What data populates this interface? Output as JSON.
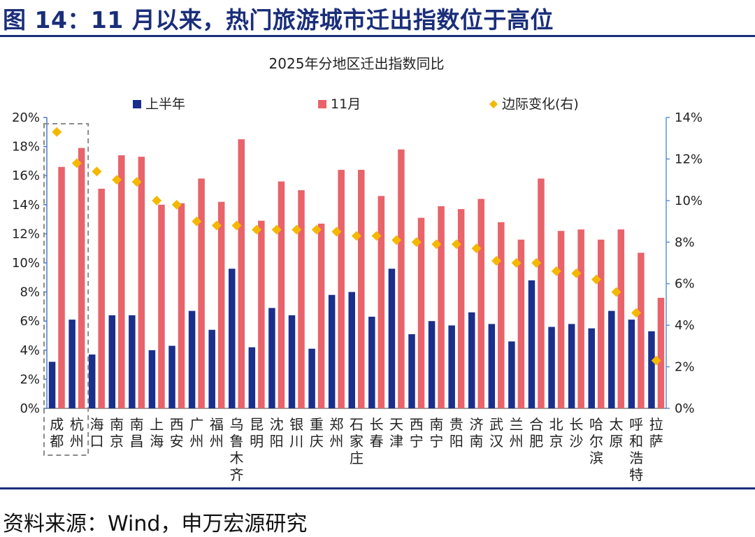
{
  "figure": {
    "title": "图 14：11 月以来，热门旅游城市迁出指数位于高位",
    "source": "资料来源：Wind，申万宏源研究"
  },
  "colors": {
    "series_h1": "#1a2e8c",
    "series_nov": "#e8636a",
    "series_change": "#f5b800",
    "title_blue": "#1a2e7a",
    "axis_right": "#5b8fd6"
  },
  "chart_data": {
    "type": "bar",
    "title": "2025年分地区迁出指数同比",
    "categories": [
      "成都",
      "杭州",
      "海口",
      "南京",
      "南昌",
      "上海",
      "西安",
      "广州",
      "福州",
      "乌鲁木齐",
      "昆明",
      "沈阳",
      "银川",
      "重庆",
      "郑州",
      "石家庄",
      "长春",
      "天津",
      "西宁",
      "南宁",
      "贵阳",
      "济南",
      "武汉",
      "兰州",
      "合肥",
      "北京",
      "长沙",
      "哈尔滨",
      "太原",
      "呼和浩特",
      "拉萨"
    ],
    "ylim": [
      0,
      20
    ],
    "y_ticks": [
      "0%",
      "2%",
      "4%",
      "6%",
      "8%",
      "10%",
      "12%",
      "14%",
      "16%",
      "18%",
      "20%"
    ],
    "y2lim": [
      0,
      14
    ],
    "y2_ticks": [
      "0%",
      "2%",
      "4%",
      "6%",
      "8%",
      "10%",
      "12%",
      "14%"
    ],
    "series": [
      {
        "name": "上半年",
        "type": "bar",
        "axis": "left",
        "values": [
          3.2,
          6.1,
          3.7,
          6.4,
          6.4,
          4.0,
          4.3,
          6.7,
          5.4,
          9.6,
          4.2,
          6.9,
          6.4,
          4.1,
          7.8,
          8.0,
          6.3,
          9.6,
          5.1,
          6.0,
          5.7,
          6.6,
          5.8,
          4.6,
          8.8,
          5.6,
          5.8,
          5.5,
          6.7,
          6.1,
          5.3
        ]
      },
      {
        "name": "11月",
        "type": "bar",
        "axis": "left",
        "values": [
          16.6,
          17.9,
          15.1,
          17.4,
          17.3,
          14.0,
          14.1,
          15.8,
          14.2,
          18.5,
          12.9,
          15.6,
          15.0,
          12.7,
          16.4,
          16.4,
          14.6,
          17.8,
          13.1,
          13.9,
          13.7,
          14.4,
          12.8,
          11.6,
          15.8,
          12.2,
          12.3,
          11.6,
          12.3,
          10.7,
          7.6
        ]
      },
      {
        "name": "边际变化(右)",
        "type": "scatter",
        "axis": "right",
        "values": [
          13.3,
          11.8,
          11.4,
          11.0,
          10.9,
          10.0,
          9.8,
          9.0,
          8.8,
          8.8,
          8.6,
          8.6,
          8.6,
          8.6,
          8.5,
          8.3,
          8.3,
          8.1,
          8.0,
          7.9,
          7.9,
          7.7,
          7.1,
          7.0,
          7.0,
          6.6,
          6.5,
          6.2,
          5.6,
          4.6,
          2.3
        ]
      }
    ],
    "highlight_group": [
      "成都",
      "杭州"
    ],
    "legend_position": "top"
  }
}
